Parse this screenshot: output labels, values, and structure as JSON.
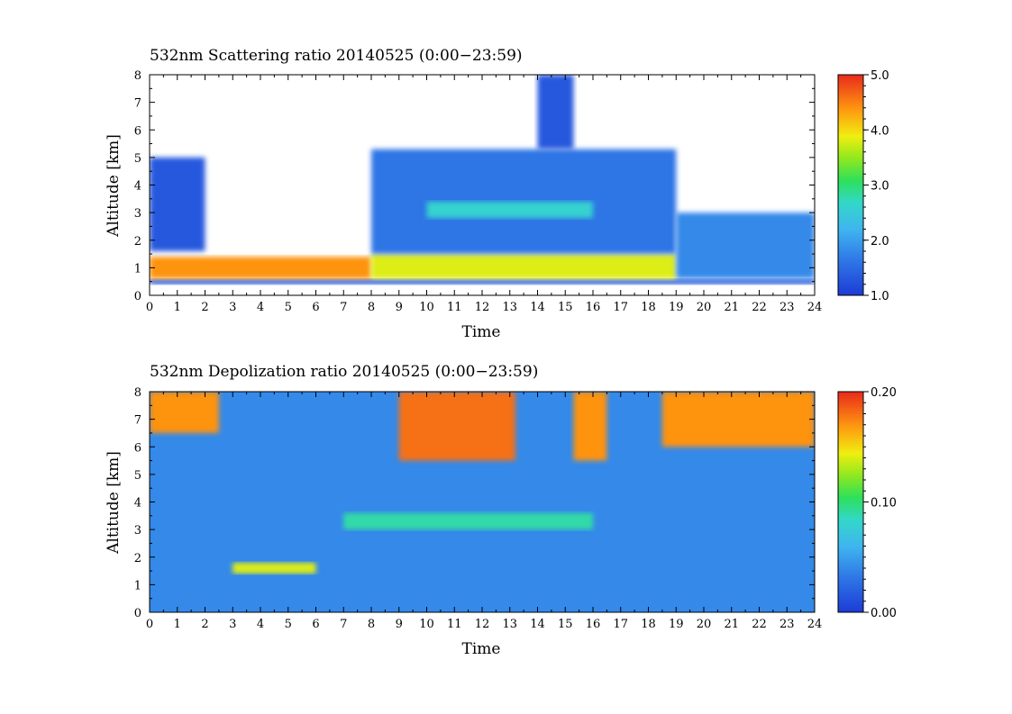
{
  "chart_data": [
    {
      "type": "heatmap",
      "title": "532nm Scattering ratio  20140525 (0:00−23:59)",
      "xlabel": "Time",
      "ylabel": "Altitude [km]",
      "xlim": [
        0,
        24
      ],
      "ylim": [
        0,
        8
      ],
      "xticks": [
        "0",
        "1",
        "2",
        "3",
        "4",
        "5",
        "6",
        "7",
        "8",
        "9",
        "10",
        "11",
        "12",
        "13",
        "14",
        "15",
        "16",
        "17",
        "18",
        "19",
        "20",
        "21",
        "22",
        "23",
        "24"
      ],
      "yticks": [
        "0",
        "1",
        "2",
        "3",
        "4",
        "5",
        "6",
        "7",
        "8"
      ],
      "colorbar": {
        "min": 1.0,
        "max": 5.0,
        "ticks": [
          "1.0",
          "2.0",
          "3.0",
          "4.0",
          "5.0"
        ]
      },
      "features": [
        {
          "x": [
            0,
            24
          ],
          "y": [
            0.4,
            0.6
          ],
          "value": 1.3
        },
        {
          "x": [
            0,
            8
          ],
          "y": [
            0.6,
            1.4
          ],
          "value": 4.4
        },
        {
          "x": [
            8,
            19
          ],
          "y": [
            0.6,
            1.5
          ],
          "value": 3.8
        },
        {
          "x": [
            8,
            19
          ],
          "y": [
            1.5,
            5.3
          ],
          "value": 1.6
        },
        {
          "x": [
            10,
            16
          ],
          "y": [
            2.8,
            3.4
          ],
          "value": 2.6
        },
        {
          "x": [
            0,
            2
          ],
          "y": [
            1.6,
            5.0
          ],
          "value": 1.3
        },
        {
          "x": [
            14,
            15.3
          ],
          "y": [
            5.3,
            8.0
          ],
          "value": 1.3
        },
        {
          "x": [
            19,
            24
          ],
          "y": [
            0.6,
            3.0
          ],
          "value": 1.8
        }
      ]
    },
    {
      "type": "heatmap",
      "title": "532nm Depolization ratio  20140525 (0:00−23:59)",
      "xlabel": "Time",
      "ylabel": "Altitude [km]",
      "xlim": [
        0,
        24
      ],
      "ylim": [
        0,
        8
      ],
      "xticks": [
        "0",
        "1",
        "2",
        "3",
        "4",
        "5",
        "6",
        "7",
        "8",
        "9",
        "10",
        "11",
        "12",
        "13",
        "14",
        "15",
        "16",
        "17",
        "18",
        "19",
        "20",
        "21",
        "22",
        "23",
        "24"
      ],
      "yticks": [
        "0",
        "1",
        "2",
        "3",
        "4",
        "5",
        "6",
        "7",
        "8"
      ],
      "colorbar": {
        "min": 0.0,
        "max": 0.2,
        "ticks": [
          "0.00",
          "0.10",
          "0.20"
        ]
      },
      "features": [
        {
          "x": [
            0,
            24
          ],
          "y": [
            0,
            8
          ],
          "value": 0.04
        },
        {
          "x": [
            0,
            2.5
          ],
          "y": [
            6.5,
            8.0
          ],
          "value": 0.17
        },
        {
          "x": [
            9,
            13.2
          ],
          "y": [
            5.5,
            8.0
          ],
          "value": 0.18
        },
        {
          "x": [
            15.3,
            16.5
          ],
          "y": [
            5.5,
            8.0
          ],
          "value": 0.17
        },
        {
          "x": [
            18.5,
            24
          ],
          "y": [
            6.0,
            8.0
          ],
          "value": 0.17
        },
        {
          "x": [
            7,
            16
          ],
          "y": [
            3.0,
            3.6
          ],
          "value": 0.09
        },
        {
          "x": [
            3,
            6
          ],
          "y": [
            1.4,
            1.8
          ],
          "value": 0.14
        }
      ]
    }
  ]
}
